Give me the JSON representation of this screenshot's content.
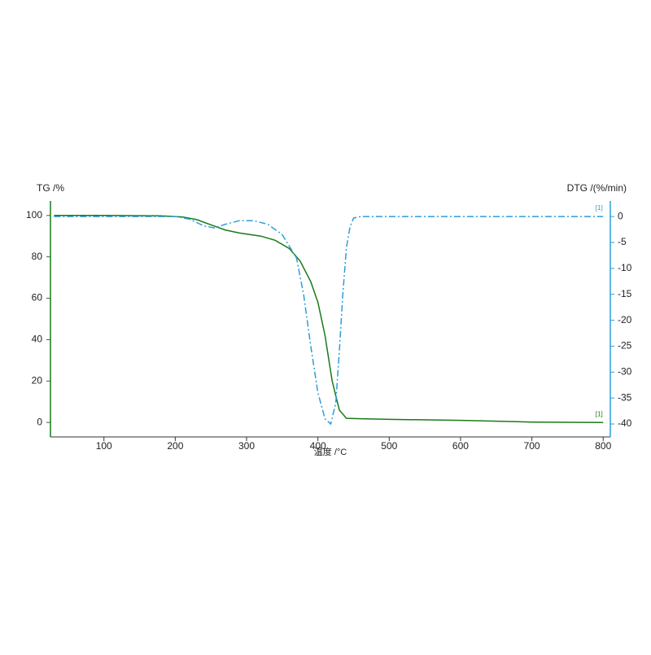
{
  "chart_data": {
    "type": "line",
    "y_label": "TG /%",
    "y2_label": "DTG /(%/min)",
    "x_label": "温度 /°C",
    "xlim": [
      25,
      810
    ],
    "xticks": [
      100,
      200,
      300,
      400,
      500,
      600,
      700,
      800
    ],
    "ylim": [
      -7,
      107
    ],
    "yticks": [
      0,
      20,
      40,
      60,
      80,
      100
    ],
    "y2lim": [
      -42.5,
      3
    ],
    "y2ticks": [
      0,
      -5,
      -10,
      -15,
      -20,
      -25,
      -30,
      -35,
      -40
    ],
    "series": [
      {
        "name": "[1]",
        "color": "#1a7a1a",
        "axis": "y",
        "dash": "solid",
        "x": [
          30,
          100,
          180,
          210,
          230,
          250,
          270,
          290,
          320,
          340,
          360,
          375,
          390,
          400,
          410,
          420,
          430,
          440,
          460,
          500,
          600,
          700,
          800
        ],
        "values": [
          100,
          100,
          99.8,
          99.3,
          98,
          95.5,
          93,
          91.5,
          90,
          88,
          84,
          78,
          68,
          58,
          42,
          20,
          6,
          2,
          1.8,
          1.5,
          1,
          0.2,
          0
        ]
      },
      {
        "name": "[1]",
        "color": "#2a9fd6",
        "axis": "y2",
        "dash": "dashdot",
        "x": [
          30,
          200,
          220,
          240,
          255,
          270,
          290,
          310,
          330,
          350,
          370,
          380,
          390,
          400,
          410,
          418,
          425,
          430,
          435,
          440,
          445,
          450,
          460,
          800
        ],
        "values": [
          0,
          0,
          -0.5,
          -1.8,
          -2.2,
          -1.5,
          -0.8,
          -0.8,
          -1.5,
          -3.5,
          -8,
          -15,
          -25,
          -34,
          -39,
          -40,
          -36,
          -26,
          -15,
          -6,
          -2,
          -0.3,
          0,
          0
        ]
      }
    ]
  }
}
